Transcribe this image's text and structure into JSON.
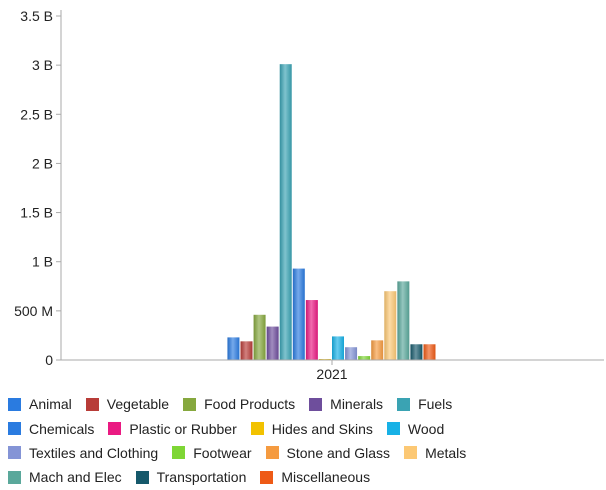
{
  "chart_data": {
    "type": "bar",
    "categories": [
      "2021"
    ],
    "ylim": [
      0,
      3500000000
    ],
    "y_ticks": [
      {
        "value": 0,
        "label": "0"
      },
      {
        "value": 500000000,
        "label": "500 M"
      },
      {
        "value": 1000000000,
        "label": "1 B"
      },
      {
        "value": 1500000000,
        "label": "1.5 B"
      },
      {
        "value": 2000000000,
        "label": "2 B"
      },
      {
        "value": 2500000000,
        "label": "2.5 B"
      },
      {
        "value": 3000000000,
        "label": "3 B"
      },
      {
        "value": 3500000000,
        "label": "3.5 B"
      }
    ],
    "grid": false,
    "legend_position": "bottom",
    "series": [
      {
        "name": "Animal",
        "color": "#2a7be0",
        "values": [
          230000000
        ]
      },
      {
        "name": "Vegetable",
        "color": "#b83c38",
        "values": [
          190000000
        ]
      },
      {
        "name": "Food Products",
        "color": "#86a83e",
        "values": [
          460000000
        ]
      },
      {
        "name": "Minerals",
        "color": "#6e4e9c",
        "values": [
          340000000
        ]
      },
      {
        "name": "Fuels",
        "color": "#3aa3b3",
        "values": [
          3010000000
        ]
      },
      {
        "name": "Chemicals",
        "color": "#2a7be0",
        "values": [
          930000000
        ]
      },
      {
        "name": "Plastic or Rubber",
        "color": "#ea1a82",
        "values": [
          610000000
        ]
      },
      {
        "name": "Hides and Skins",
        "color": "#f2c200",
        "values": [
          10000000
        ]
      },
      {
        "name": "Wood",
        "color": "#17b1e6",
        "values": [
          240000000
        ]
      },
      {
        "name": "Textiles and Clothing",
        "color": "#8494d6",
        "values": [
          130000000
        ]
      },
      {
        "name": "Footwear",
        "color": "#7ed635",
        "values": [
          40000000
        ]
      },
      {
        "name": "Stone and Glass",
        "color": "#f59b40",
        "values": [
          200000000
        ]
      },
      {
        "name": "Metals",
        "color": "#fcc874",
        "values": [
          700000000
        ]
      },
      {
        "name": "Mach and Elec",
        "color": "#5aa89b",
        "values": [
          800000000
        ]
      },
      {
        "name": "Transportation",
        "color": "#16596b",
        "values": [
          160000000
        ]
      },
      {
        "name": "Miscellaneous",
        "color": "#ee5a16",
        "values": [
          160000000
        ]
      }
    ],
    "legend_rows": [
      [
        0,
        1,
        2,
        3,
        4
      ],
      [
        5,
        6,
        7,
        8
      ],
      [
        9,
        10,
        11,
        12
      ],
      [
        13,
        14,
        15
      ]
    ]
  }
}
